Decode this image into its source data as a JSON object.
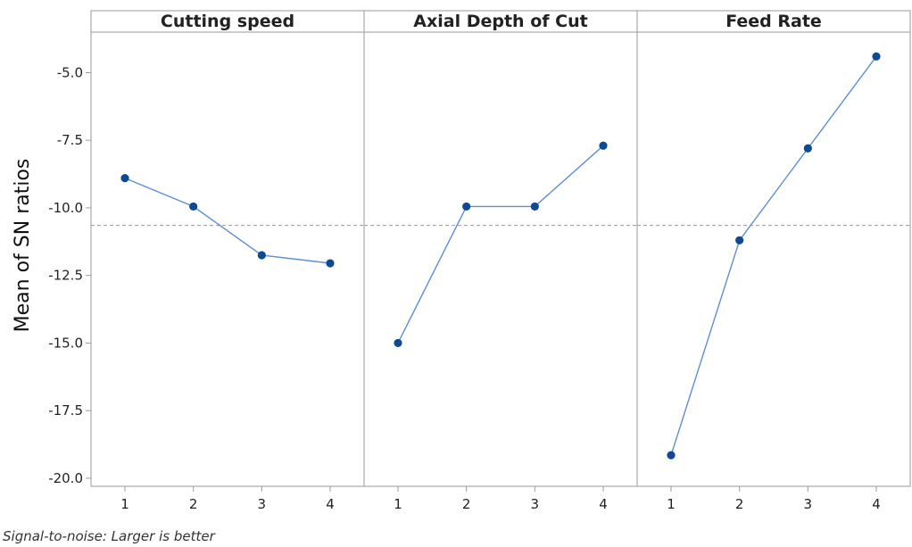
{
  "chart_data": {
    "type": "line",
    "ylabel": "Mean of SN ratios",
    "footnote": "Signal-to-noise: Larger is better",
    "ylim": [
      -20.3,
      -3.5
    ],
    "yticks": [
      -5.0,
      -7.5,
      -10.0,
      -12.5,
      -15.0,
      -17.5,
      -20.0
    ],
    "ytick_labels": [
      "-5.0",
      "-7.5",
      "-10.0",
      "-12.5",
      "-15.0",
      "-17.5",
      "-20.0"
    ],
    "reference_line": -10.65,
    "grid": false,
    "line_color": "#5b8fd6",
    "marker_color": "#0d4a91",
    "reference_color": "#999999",
    "panels": [
      {
        "title": "Cutting speed",
        "categories": [
          "1",
          "2",
          "3",
          "4"
        ],
        "values": [
          -8.9,
          -9.95,
          -11.75,
          -12.05
        ]
      },
      {
        "title": "Axial Depth of Cut",
        "categories": [
          "1",
          "2",
          "3",
          "4"
        ],
        "values": [
          -15.0,
          -9.95,
          -9.95,
          -7.7
        ]
      },
      {
        "title": "Feed Rate",
        "categories": [
          "1",
          "2",
          "3",
          "4"
        ],
        "values": [
          -19.15,
          -11.2,
          -7.8,
          -4.4
        ]
      }
    ]
  }
}
